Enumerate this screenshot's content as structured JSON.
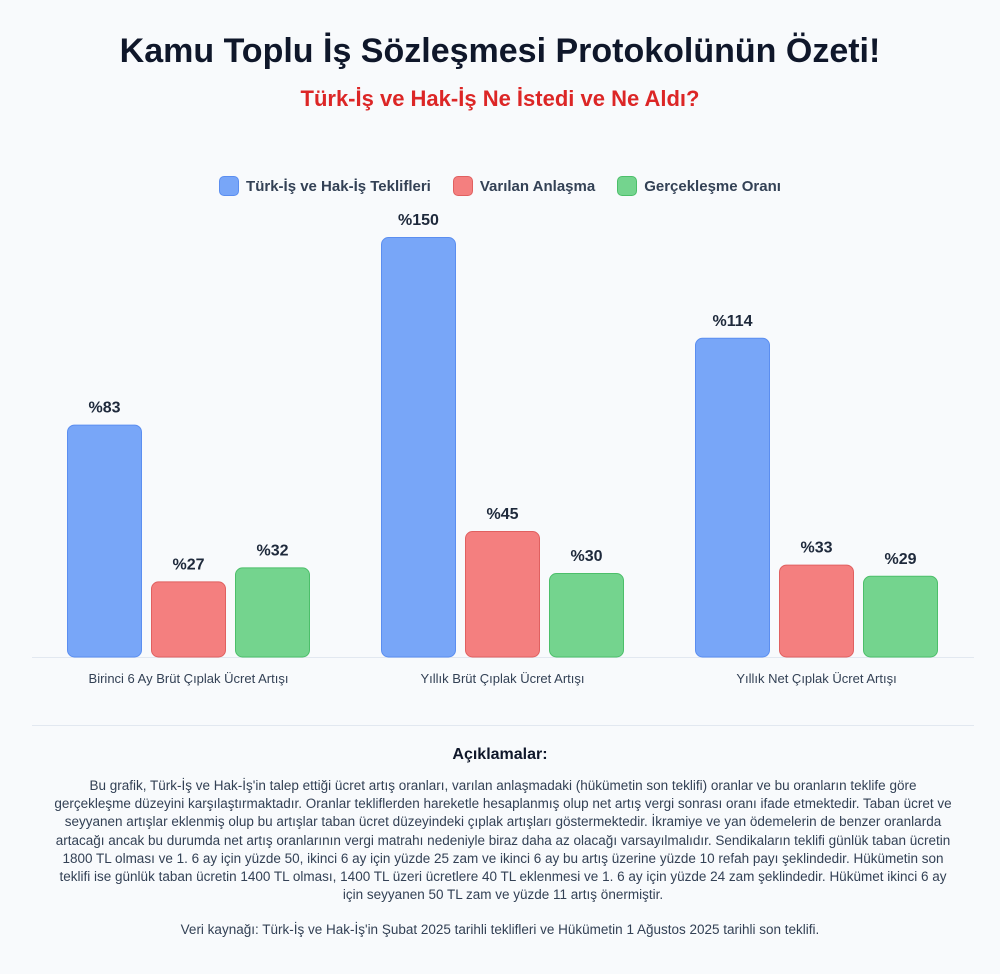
{
  "header": {
    "title": "Kamu Toplu İş Sözleşmesi Protokolünün Özeti!",
    "subtitle": "Türk-İş ve Hak-İş Ne İstedi ve Ne Aldı?"
  },
  "colors": {
    "series1_fill": "#78a6f8",
    "series1_stroke": "#5b8ef0",
    "series2_fill": "#f47f7f",
    "series2_stroke": "#e06060",
    "series3_fill": "#74d48e",
    "series3_stroke": "#4cbf6a"
  },
  "chart_data": {
    "type": "bar",
    "categories": [
      "Birinci 6 Ay Brüt Çıplak Ücret Artışı",
      "Yıllık Brüt Çıplak Ücret Artışı",
      "Yıllık Net Çıplak Ücret Artışı"
    ],
    "series": [
      {
        "name": "Türk-İş ve Hak-İş Teklifleri",
        "values": [
          83,
          150,
          114
        ],
        "labels": [
          "%83",
          "%150",
          "%114"
        ]
      },
      {
        "name": "Varılan Anlaşma",
        "values": [
          27,
          45,
          33
        ],
        "labels": [
          "%27",
          "%45",
          "%33"
        ]
      },
      {
        "name": "Gerçekleşme Oranı",
        "values": [
          32,
          30,
          29
        ],
        "labels": [
          "%32",
          "%30",
          "%29"
        ]
      }
    ],
    "ylim": [
      0,
      160
    ],
    "legend": "top-center",
    "grid": false
  },
  "notes": {
    "heading": "Açıklamalar:",
    "body": "Bu grafik, Türk-İş ve Hak-İş'in talep ettiği ücret artış oranları, varılan anlaşmadaki (hükümetin son teklifi) oranlar ve bu oranların teklife göre gerçekleşme düzeyini karşılaştırmaktadır. Oranlar tekliflerden hareketle hesaplanmış olup net artış vergi sonrası oranı ifade etmektedir. Taban ücret ve seyyanen artışlar eklenmiş olup bu artışlar taban ücret düzeyindeki çıplak artışları göstermektedir. İkramiye ve yan ödemelerin de benzer oranlarda artacağı ancak bu durumda net artış oranlarının vergi matrahı nedeniyle biraz daha az olacağı varsayılmalıdır. Sendikaların teklifi günlük taban ücretin 1800 TL olması ve 1. 6 ay için yüzde 50, ikinci 6 ay için yüzde 25 zam ve ikinci 6 ay bu artış üzerine yüzde 10 refah payı şeklindedir. Hükümetin son teklifi ise günlük taban ücretin 1400 TL olması, 1400 TL üzeri ücretlere 40 TL eklenmesi ve 1. 6 ay için yüzde 24 zam şeklindedir. Hükümet ikinci 6 ay için seyyanen 50 TL zam ve yüzde 11 artış önermiştir.",
    "source": "Veri kaynağı: Türk-İş ve Hak-İş'in Şubat 2025 tarihli teklifleri ve Hükümetin 1 Ağustos 2025 tarihli son teklifi."
  }
}
